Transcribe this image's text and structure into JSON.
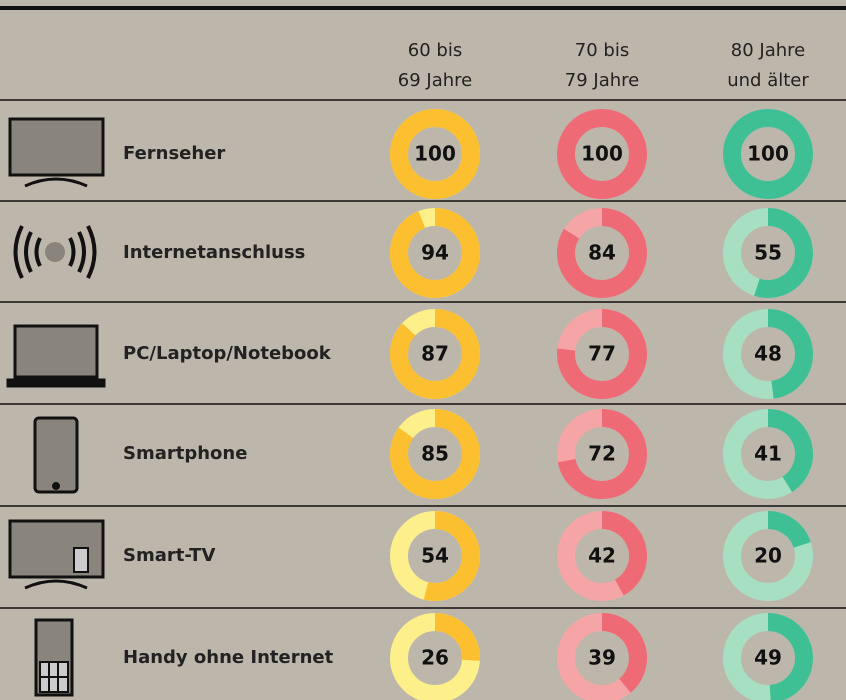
{
  "chart_data": {
    "type": "donut",
    "categories": [
      "Fernseher",
      "Internetanschluss",
      "PC/Laptop/Notebook",
      "Smartphone",
      "Smart-TV",
      "Handy ohne Internet"
    ],
    "max": 100,
    "series": [
      {
        "name": "60 bis\n69 Jahre",
        "color": "#fbbf2f",
        "track_color": "#fdf08a",
        "values": [
          100,
          94,
          87,
          85,
          54,
          26
        ]
      },
      {
        "name": "70 bis\n79 Jahre",
        "color": "#ee6a75",
        "track_color": "#f5a5a6",
        "values": [
          100,
          84,
          77,
          72,
          42,
          39
        ]
      },
      {
        "name": "80 Jahre\nund älter",
        "color": "#3fbf94",
        "track_color": "#a7dfc3",
        "values": [
          100,
          55,
          48,
          41,
          20,
          49
        ]
      }
    ]
  }
}
